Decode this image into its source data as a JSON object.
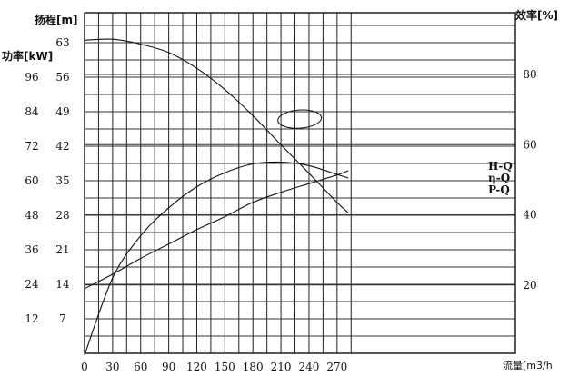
{
  "chart_data": {
    "type": "line",
    "xlabel": "流量[m3/h",
    "xlim": [
      0,
      285
    ],
    "x_ticks": [
      0,
      30,
      60,
      90,
      120,
      150,
      180,
      210,
      240,
      270
    ],
    "y_axes": {
      "head": {
        "label": "扬程[m]",
        "range": [
          0,
          70
        ],
        "ticks": [
          7,
          14,
          21,
          28,
          35,
          42,
          49,
          56,
          63
        ]
      },
      "power": {
        "label": "功率[kW]",
        "range": [
          0,
          108
        ],
        "ticks": [
          12,
          24,
          36,
          48,
          60,
          72,
          84,
          96
        ]
      },
      "efficiency": {
        "label": "效率[%]",
        "range": [
          0,
          100
        ],
        "ticks": [
          20,
          40,
          60,
          80
        ]
      }
    },
    "series": [
      {
        "name": "H-Q",
        "axis": "head",
        "x": [
          0,
          30,
          60,
          90,
          120,
          150,
          180,
          210,
          240,
          270,
          282
        ],
        "y": [
          63.5,
          63.7,
          62.7,
          61.0,
          57.8,
          53.5,
          48.2,
          42.3,
          36.5,
          30.6,
          28.5
        ]
      },
      {
        "name": "η-Q",
        "axis": "efficiency",
        "x": [
          0,
          30,
          60,
          90,
          120,
          150,
          180,
          210,
          240,
          270,
          282
        ],
        "y": [
          0,
          22,
          34,
          42,
          48,
          52,
          54.5,
          55,
          54,
          51.5,
          50.5
        ]
      },
      {
        "name": "P-Q",
        "axis": "power",
        "x": [
          0,
          30,
          60,
          90,
          120,
          150,
          180,
          210,
          240,
          270,
          282
        ],
        "y": [
          22.5,
          27.5,
          33,
          38,
          43,
          47.5,
          52.5,
          56,
          59,
          62,
          63.5
        ]
      }
    ],
    "annotation": {
      "type": "ellipse",
      "x": 230,
      "head": 47.5
    },
    "grid": true
  }
}
